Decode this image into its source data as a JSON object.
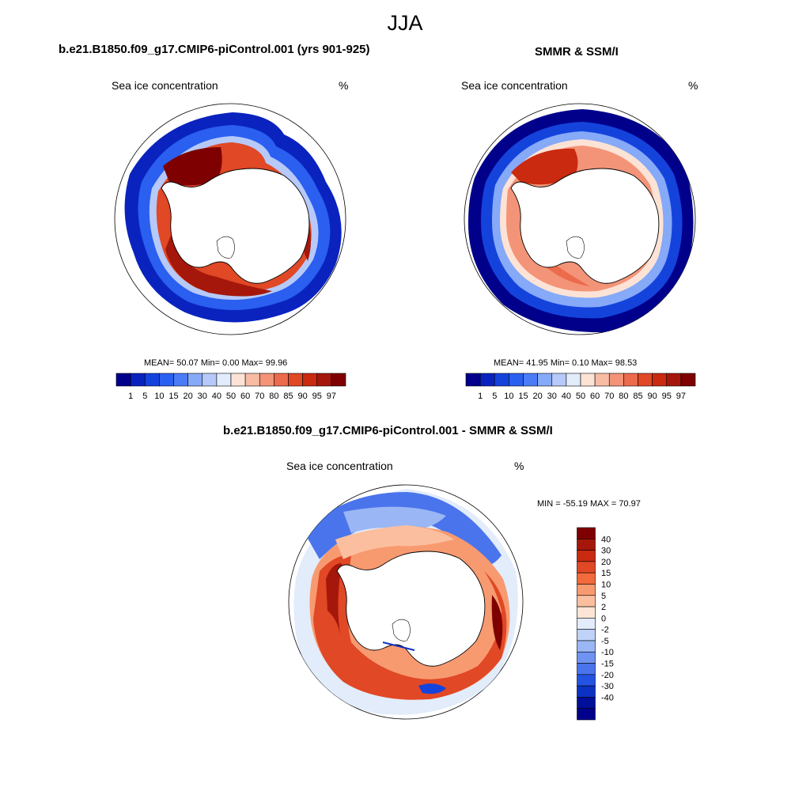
{
  "season": "JJA",
  "panels": [
    {
      "title": "b.e21.B1850.f09_g17.CMIP6-piControl.001 (yrs 901-925)",
      "left_label": "Sea ice concentration",
      "right_label": "%",
      "stats": "MEAN=  50.07  Min=   0.00  Max=  99.96"
    },
    {
      "title": "SMMR & SSM/I",
      "left_label": "Sea ice concentration",
      "right_label": "%",
      "stats": "MEAN=  41.95  Min=   0.10  Max=  98.53"
    }
  ],
  "diff_panel": {
    "title": "b.e21.B1850.f09_g17.CMIP6-piControl.001 - SMMR & SSM/I",
    "left_label": "Sea ice concentration",
    "right_label": "%",
    "stats": "MIN = -55.19 MAX =  70.97"
  },
  "colorbar_ice": {
    "colors": [
      "#00008b",
      "#0a23bf",
      "#1443dc",
      "#2a5ff0",
      "#4b7bf5",
      "#86a9f8",
      "#b6c9f8",
      "#e2ecfb",
      "#fce3d5",
      "#f8bca4",
      "#f39478",
      "#ec6b4c",
      "#e04826",
      "#c92a10",
      "#a5170a",
      "#7f0000"
    ],
    "labels": [
      "1",
      "5",
      "10",
      "15",
      "20",
      "30",
      "40",
      "50",
      "60",
      "70",
      "80",
      "85",
      "90",
      "95",
      "97"
    ]
  },
  "colorbar_diff": {
    "colors": [
      "#7f0000",
      "#a5170a",
      "#c92a10",
      "#e04826",
      "#f36a3c",
      "#f89a70",
      "#fbbf9f",
      "#fde5d6",
      "#e2ecfb",
      "#bfd2f7",
      "#9ab6f4",
      "#6f93f0",
      "#4a74ec",
      "#2452e2",
      "#0c32c4",
      "#000f99",
      "#00008b"
    ],
    "labels": [
      "40",
      "30",
      "20",
      "15",
      "10",
      "5",
      "2",
      "0",
      "-2",
      "-5",
      "-10",
      "-15",
      "-20",
      "-30",
      "-40"
    ]
  }
}
